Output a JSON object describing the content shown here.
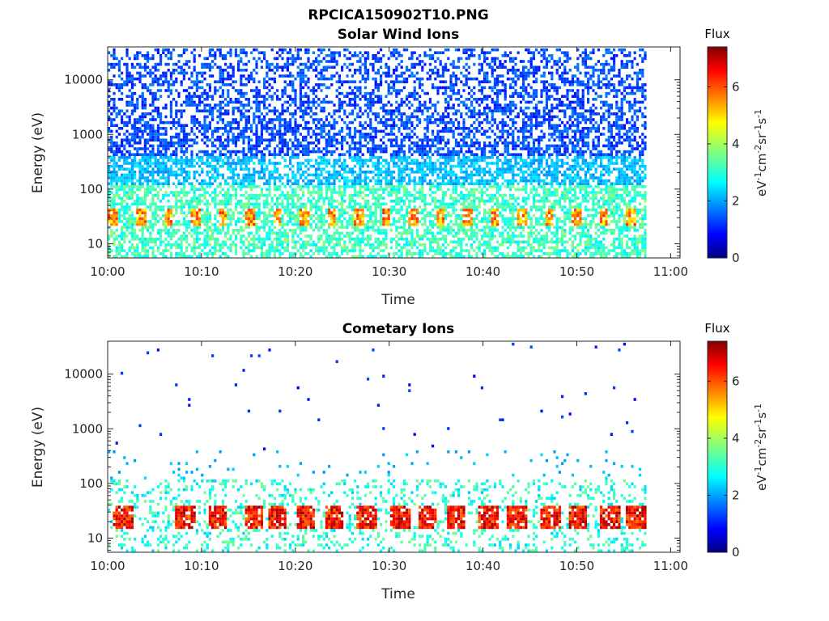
{
  "figure": {
    "title": "RPCICA150902T10.PNG"
  },
  "chart_data": [
    {
      "type": "heatmap",
      "title": "Solar Wind Ions",
      "xlabel": "Time",
      "ylabel": "Energy (eV)",
      "x_ticks": [
        "10:00",
        "10:10",
        "10:20",
        "10:30",
        "10:40",
        "10:50",
        "11:00"
      ],
      "y_ticks": [
        "10",
        "100",
        "1000",
        "10000"
      ],
      "y_scale": "log",
      "ylim": [
        5.5,
        40000
      ],
      "xlim": [
        "10:00",
        "11:01"
      ],
      "data_end": "10:57.5",
      "colorbar": {
        "title": "Flux",
        "label": "eV-1cm-2sr-1s-1",
        "ticks": [
          "0",
          "2",
          "4",
          "6"
        ],
        "range": [
          0,
          7.4
        ],
        "colormap": "jet"
      },
      "description_of_values": {
        "background_cells_flux_3_to_4_eV_range": [
          5.5,
          120
        ],
        "scattered_cells_flux_1_to_2_eV_range": [
          100,
          40000
        ],
        "peak_band_eV_range": [
          22,
          40
        ],
        "peak_flux": 6
      }
    },
    {
      "type": "heatmap",
      "title": "Cometary Ions",
      "xlabel": "Time",
      "ylabel": "Energy (eV)",
      "x_ticks": [
        "10:00",
        "10:10",
        "10:20",
        "10:30",
        "10:40",
        "10:50",
        "11:00"
      ],
      "y_ticks": [
        "10",
        "100",
        "1000",
        "10000"
      ],
      "y_scale": "log",
      "ylim": [
        5.5,
        40000
      ],
      "xlim": [
        "10:00",
        "11:01"
      ],
      "data_end": "10:57.5",
      "colorbar": {
        "title": "Flux",
        "label": "eV-1cm-2sr-1s-1",
        "ticks": [
          "0",
          "2",
          "4",
          "6"
        ],
        "range": [
          0,
          7.4
        ],
        "colormap": "jet"
      },
      "bursts_minutes": [
        1.5,
        8.2,
        11.6,
        15.5,
        18.0,
        21.0,
        24.0,
        27.5,
        31.0,
        34.0,
        37.0,
        40.5,
        43.5,
        47.0,
        50.0,
        53.5,
        56.0,
        57.3
      ],
      "description_of_values": {
        "burst_core_eV_range": [
          14,
          40
        ],
        "burst_peak_flux": 7,
        "low_energy_cells_eV_range": [
          5.5,
          120
        ],
        "sparse_high_energy_dots_eV_range": [
          200,
          40000
        ]
      }
    }
  ]
}
